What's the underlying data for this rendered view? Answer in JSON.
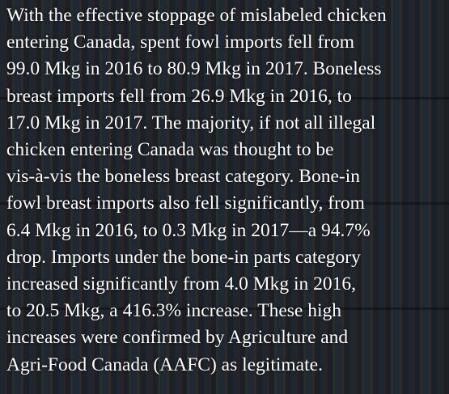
{
  "paragraph": {
    "lines": [
      "With the effective stoppage of mislabeled chicken",
      "entering Canada, spent fowl imports fell from",
      "99.0 Mkg in 2016 to 80.9 Mkg in 2017. Boneless",
      "breast imports fell from 26.9 Mkg in 2016, to",
      "17.0 Mkg in 2017. The majority, if not all illegal",
      "chicken entering Canada was thought to be",
      "vis-à-vis the boneless breast category. Bone-in",
      "fowl breast imports also fell significantly, from",
      "6.4 Mkg in 2016, to 0.3 Mkg in 2017—a 94.7%",
      "drop. Imports under the bone-in parts category",
      "increased significantly from 4.0 Mkg in 2016,",
      "to 20.5 Mkg, a 416.3% increase. These high",
      "increases were confirmed by Agriculture and",
      "Agri-Food Canada (AAFC) as legitimate."
    ]
  }
}
